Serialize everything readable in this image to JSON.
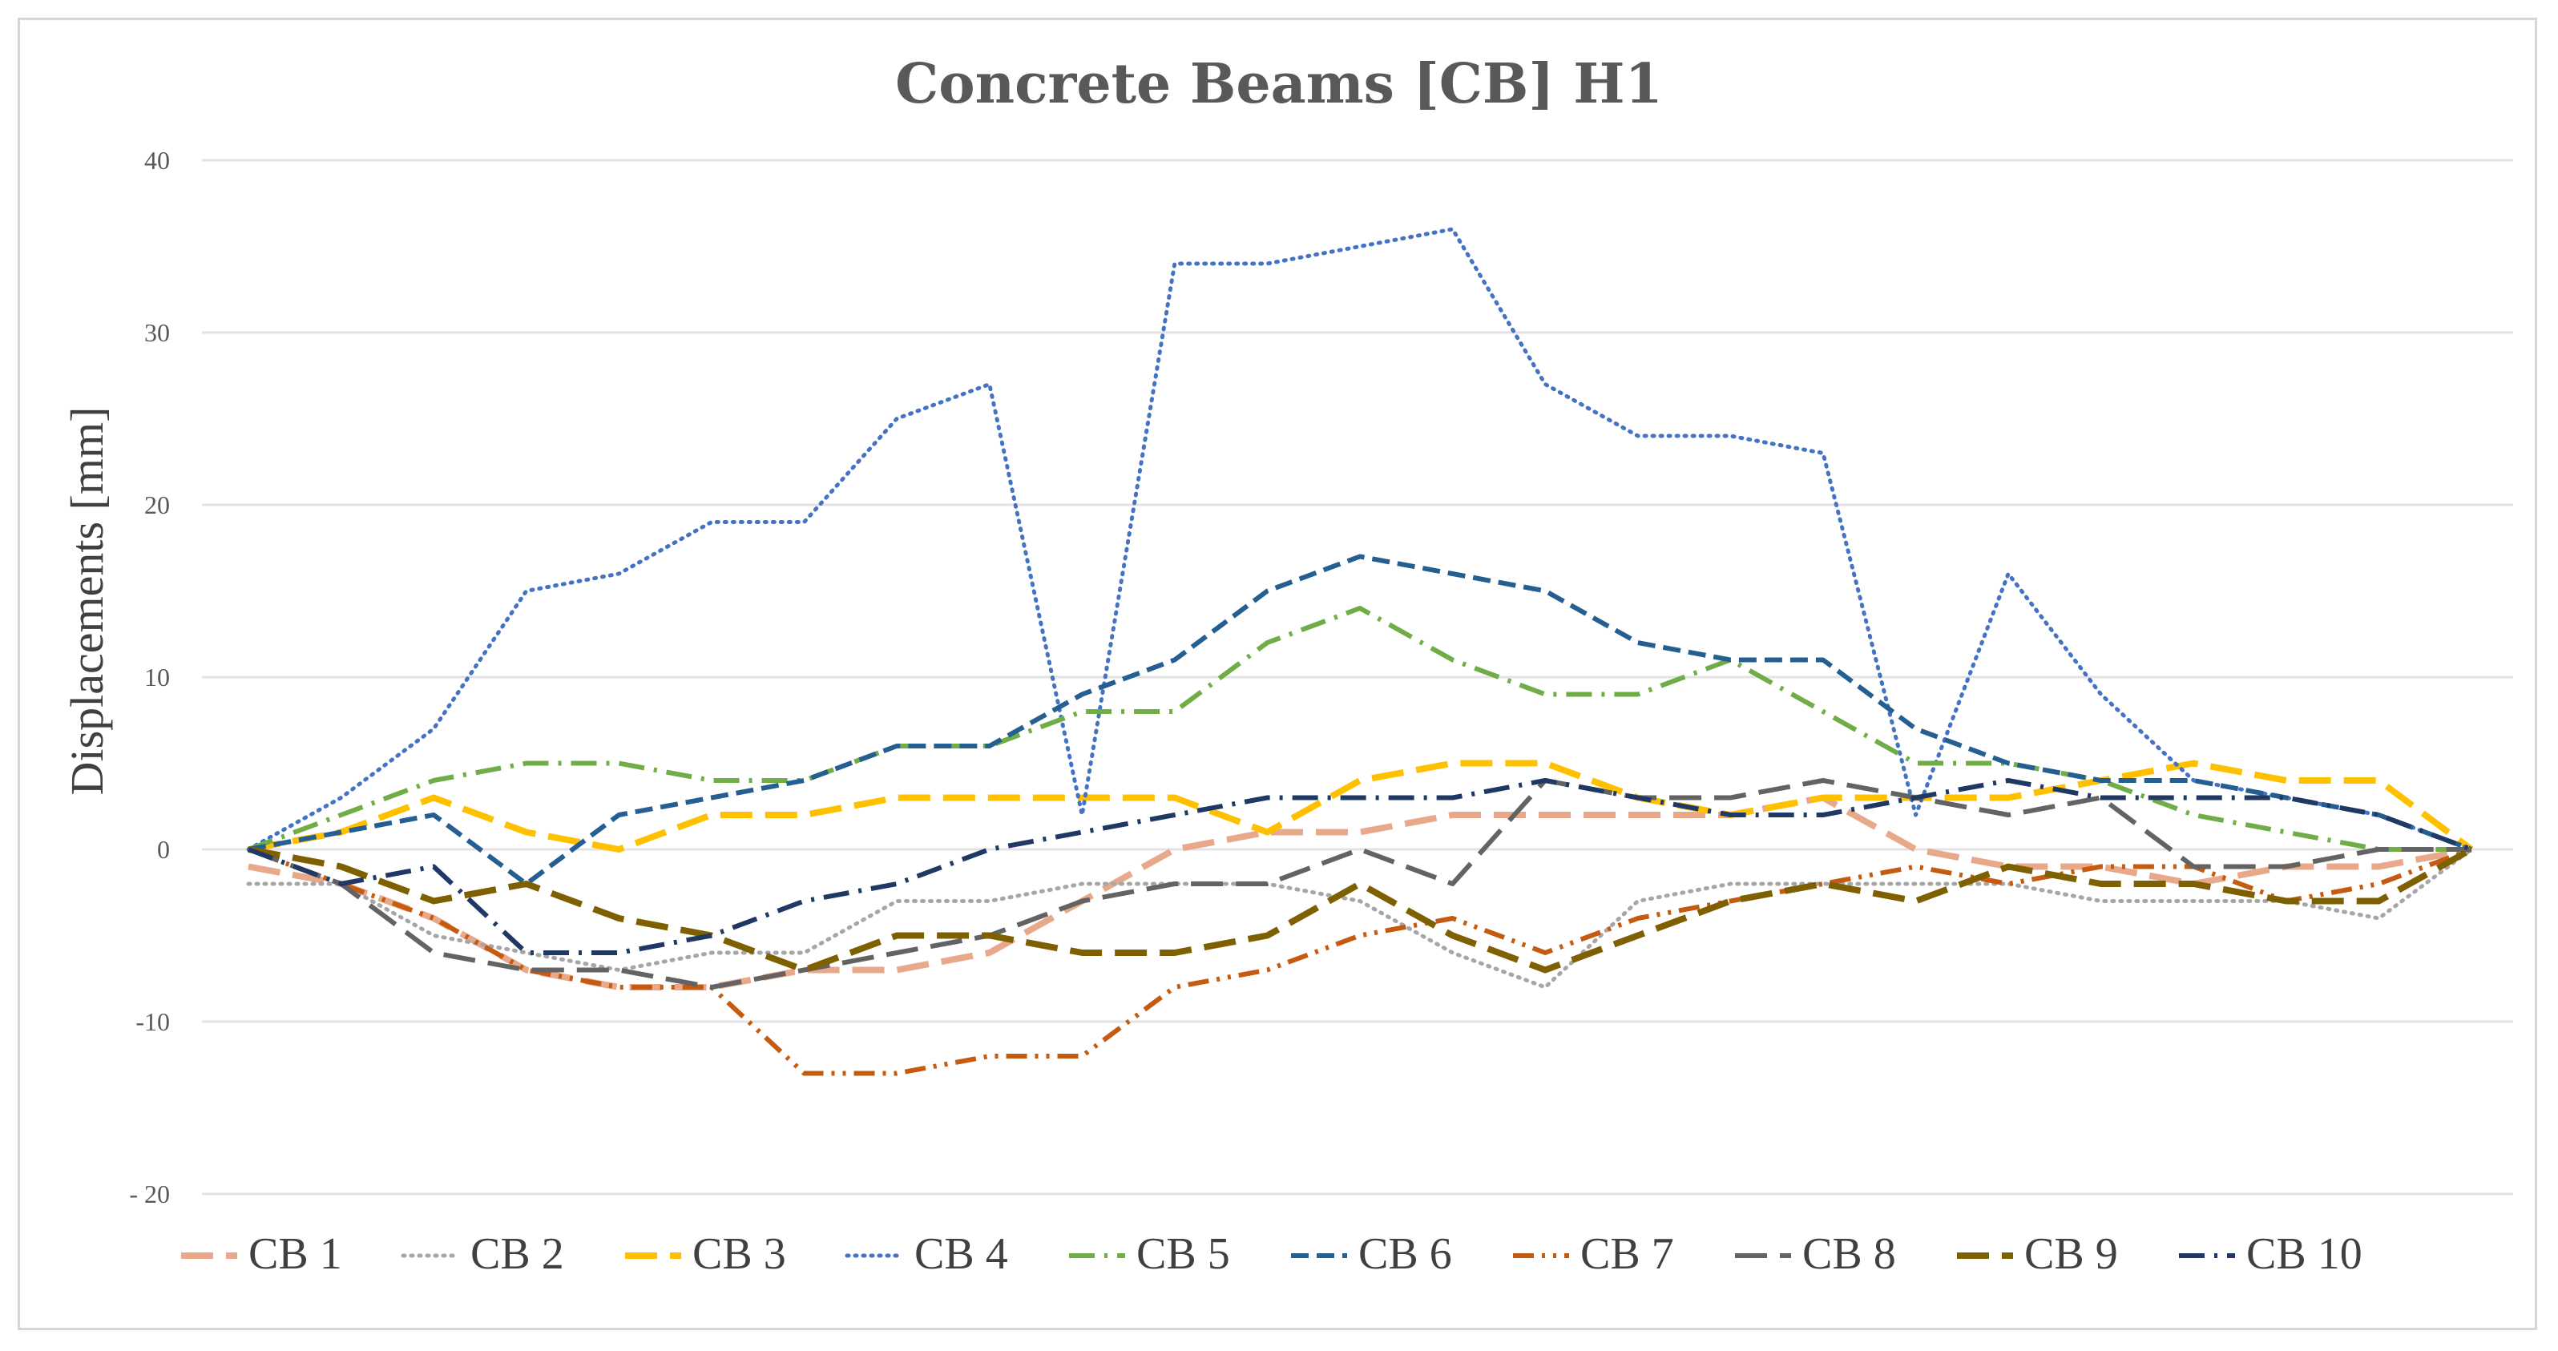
{
  "chart_data": {
    "type": "line",
    "title": "Concrete Beams [CB] H1",
    "xlabel": "",
    "ylabel": "Displacements [mm]",
    "ylim": [
      -20,
      40
    ],
    "yticks": [
      40,
      30,
      20,
      10,
      0,
      -10,
      -20
    ],
    "ytick_labels": [
      "40",
      "30",
      "20",
      "10",
      "0",
      "-10",
      "- 20"
    ],
    "grid": true,
    "legend_position": "bottom",
    "x": [
      1,
      2,
      3,
      4,
      5,
      6,
      7,
      8,
      9,
      10,
      11,
      12,
      13,
      14,
      15,
      16,
      17,
      18,
      19,
      20,
      21,
      22,
      23,
      24,
      25
    ],
    "series": [
      {
        "name": "CB 1",
        "color": "#e8a98a",
        "dash": "long-dash",
        "width": 8,
        "values": [
          -1,
          -2,
          -4,
          -7,
          -8,
          -8,
          -7,
          -7,
          -6,
          -3,
          0,
          1,
          1,
          2,
          2,
          2,
          2,
          3,
          0,
          -1,
          -1,
          -2,
          -1,
          -1,
          0
        ]
      },
      {
        "name": "CB 2",
        "color": "#a6a6a6",
        "dash": "dot",
        "width": 5,
        "values": [
          -2,
          -2,
          -5,
          -6,
          -7,
          -6,
          -6,
          -3,
          -3,
          -2,
          -2,
          -2,
          -3,
          -6,
          -8,
          -3,
          -2,
          -2,
          -2,
          -2,
          -3,
          -3,
          -3,
          -4,
          0
        ]
      },
      {
        "name": "CB 3",
        "color": "#ffc000",
        "dash": "long-dash",
        "width": 8,
        "values": [
          0,
          1,
          3,
          1,
          0,
          2,
          2,
          3,
          3,
          3,
          3,
          1,
          4,
          5,
          5,
          3,
          2,
          3,
          3,
          3,
          4,
          5,
          4,
          4,
          0
        ]
      },
      {
        "name": "CB 4",
        "color": "#4472c4",
        "dash": "dot",
        "width": 5,
        "values": [
          0,
          3,
          7,
          15,
          16,
          19,
          19,
          25,
          27,
          2,
          34,
          34,
          35,
          36,
          27,
          24,
          24,
          23,
          2,
          16,
          9,
          4,
          3,
          2,
          0
        ]
      },
      {
        "name": "CB 5",
        "color": "#70ad47",
        "dash": "dash-dot",
        "width": 6,
        "values": [
          0,
          2,
          4,
          5,
          5,
          4,
          4,
          6,
          6,
          8,
          8,
          12,
          14,
          11,
          9,
          9,
          11,
          8,
          5,
          5,
          4,
          2,
          1,
          0,
          0
        ]
      },
      {
        "name": "CB 6",
        "color": "#255e91",
        "dash": "dash",
        "width": 6,
        "values": [
          0,
          1,
          2,
          -2,
          2,
          3,
          4,
          6,
          6,
          9,
          11,
          15,
          17,
          16,
          15,
          12,
          11,
          11,
          7,
          5,
          4,
          4,
          3,
          2,
          0
        ]
      },
      {
        "name": "CB 7",
        "color": "#c55a11",
        "dash": "dash-dot-dot",
        "width": 6,
        "values": [
          0,
          -2,
          -4,
          -7,
          -8,
          -8,
          -13,
          -13,
          -12,
          -12,
          -8,
          -7,
          -5,
          -4,
          -6,
          -4,
          -3,
          -2,
          -1,
          -2,
          -1,
          -1,
          -3,
          -2,
          0
        ]
      },
      {
        "name": "CB 8",
        "color": "#636363",
        "dash": "long-dash",
        "width": 6,
        "values": [
          0,
          -2,
          -6,
          -7,
          -7,
          -8,
          -7,
          -6,
          -5,
          -3,
          -2,
          -2,
          0,
          -2,
          4,
          3,
          3,
          4,
          3,
          2,
          3,
          -1,
          -1,
          0,
          0
        ]
      },
      {
        "name": "CB 9",
        "color": "#7f6000",
        "dash": "long-dash",
        "width": 8,
        "values": [
          0,
          -1,
          -3,
          -2,
          -4,
          -5,
          -7,
          -5,
          -5,
          -6,
          -6,
          -5,
          -2,
          -5,
          -7,
          -5,
          -3,
          -2,
          -3,
          -1,
          -2,
          -2,
          -3,
          -3,
          0
        ]
      },
      {
        "name": "CB 10",
        "color": "#203864",
        "dash": "dash-dot",
        "width": 6,
        "values": [
          0,
          -2,
          -1,
          -6,
          -6,
          -5,
          -3,
          -2,
          0,
          1,
          2,
          3,
          3,
          3,
          4,
          3,
          2,
          2,
          3,
          4,
          3,
          3,
          3,
          2,
          0
        ]
      }
    ]
  }
}
